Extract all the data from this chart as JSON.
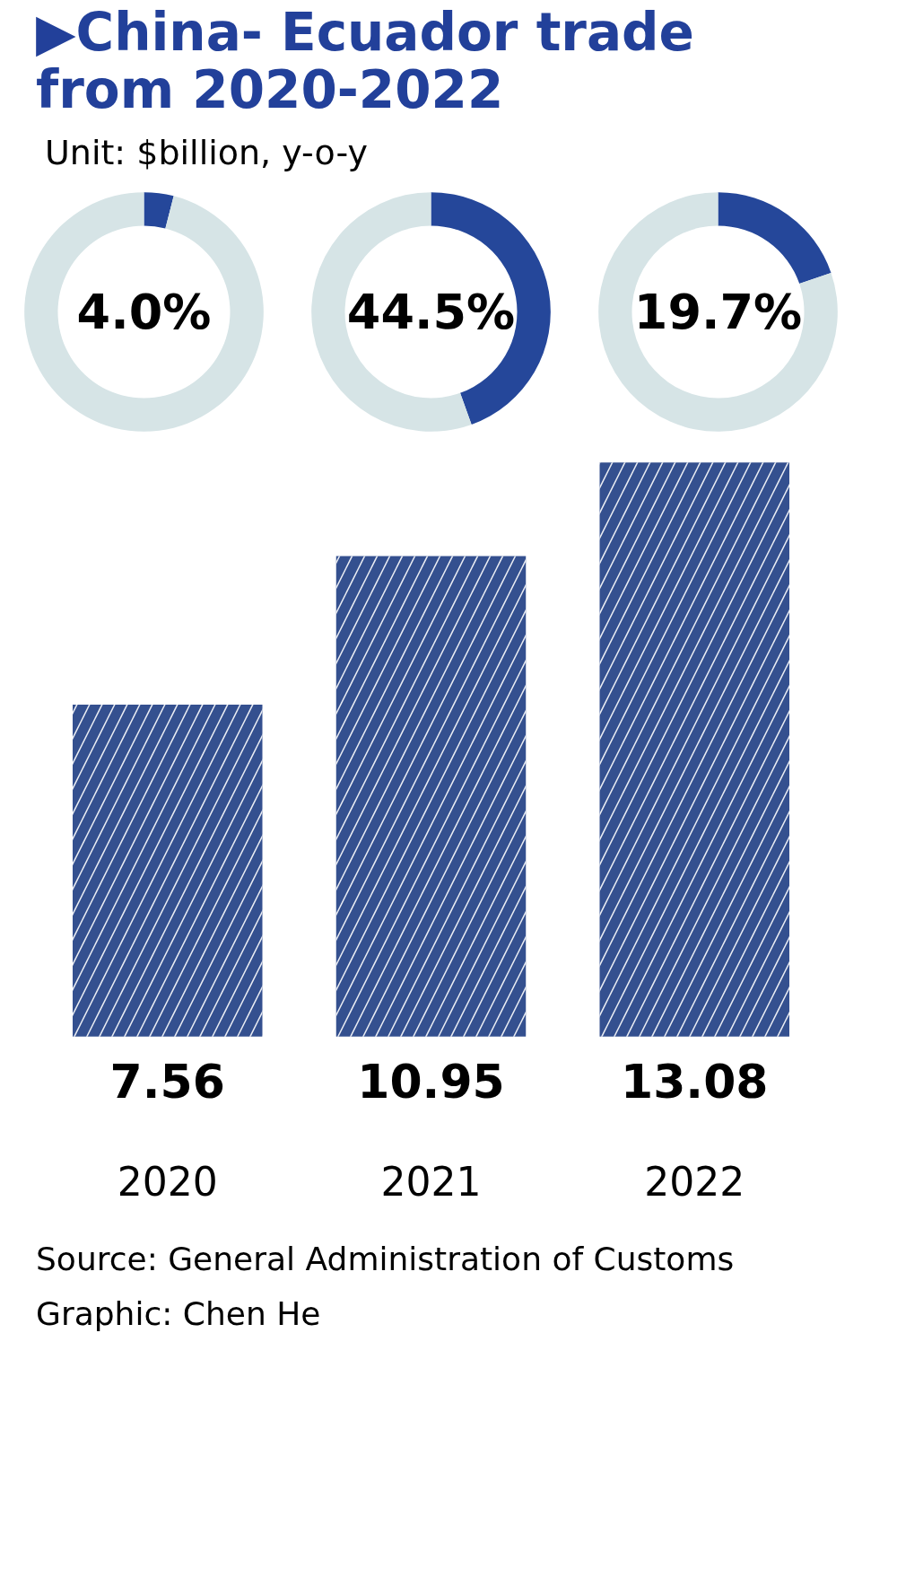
{
  "chart_data": [
    {
      "type": "bar",
      "title": "▶China- Ecuador trade from 2020-2022",
      "subtitle": "Unit: $billion, y-o-y",
      "categories": [
        "2020",
        "2021",
        "2022"
      ],
      "values": [
        7.56,
        10.95,
        13.08
      ],
      "color": "#34508f",
      "data_labels": true,
      "annotations": [
        "Source: General Administration of Customs",
        "Graphic: Chen He"
      ]
    },
    {
      "type": "donut",
      "categories": [
        null,
        null
      ],
      "values": [
        4.0,
        96.0
      ],
      "colors": [
        "#25479a",
        "#d6e4e6"
      ],
      "annotations": [
        "4.0%"
      ]
    },
    {
      "type": "donut",
      "categories": [
        null,
        null
      ],
      "values": [
        44.5,
        55.5
      ],
      "colors": [
        "#25479a",
        "#d6e4e6"
      ],
      "annotations": [
        "44.5%"
      ]
    },
    {
      "type": "donut",
      "categories": [
        null,
        null
      ],
      "values": [
        19.7,
        80.3
      ],
      "colors": [
        "#25479a",
        "#d6e4e6"
      ],
      "annotations": [
        "19.7%"
      ]
    }
  ]
}
